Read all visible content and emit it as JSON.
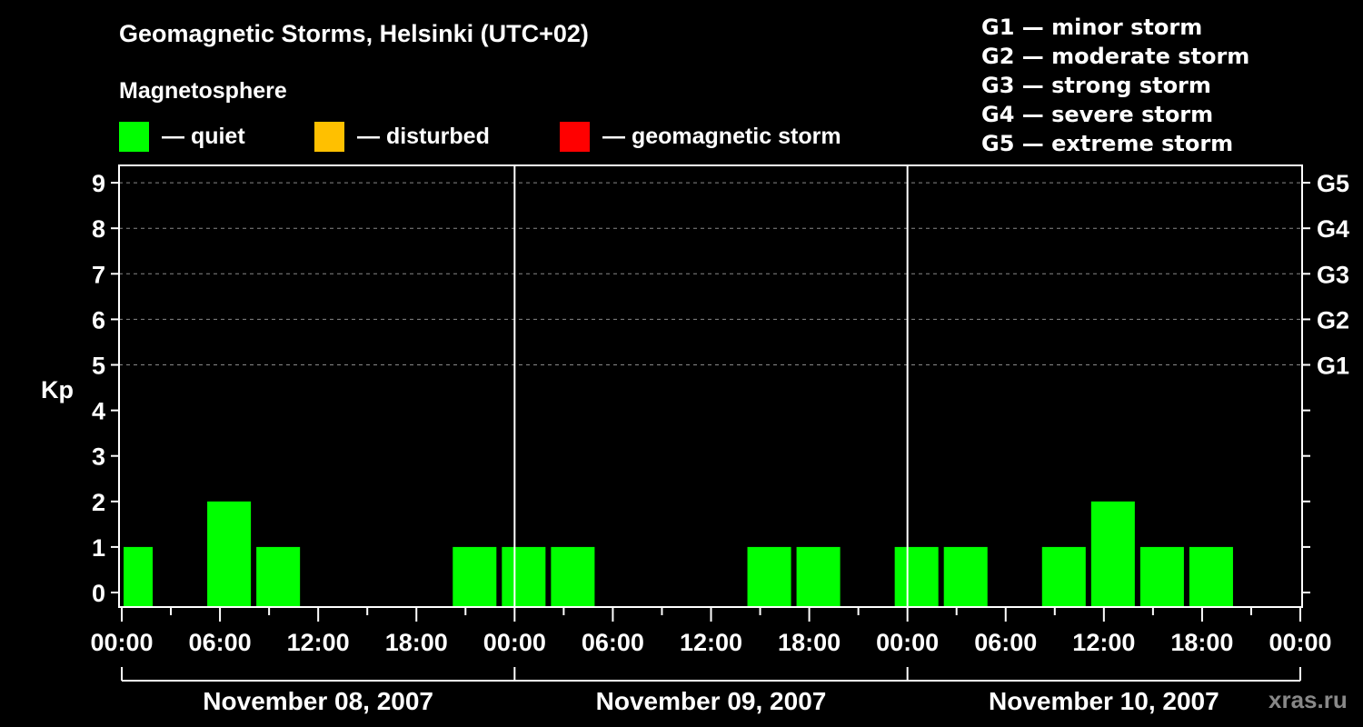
{
  "title": "Geomagnetic Storms, Helsinki (UTC+02)",
  "subtitle": "Magnetosphere",
  "legend": [
    {
      "label": "— quiet",
      "color": "#00ff00"
    },
    {
      "label": "— disturbed",
      "color": "#ffc000"
    },
    {
      "label": "— geomagnetic storm",
      "color": "#ff0000"
    }
  ],
  "g_scale_legend": [
    "G1 — minor storm",
    "G2 — moderate storm",
    "G3 — strong storm",
    "G4 — severe storm",
    "G5 — extreme storm"
  ],
  "watermark": "xras.ru",
  "chart_data": {
    "type": "bar",
    "title": "Geomagnetic Storms, Helsinki (UTC+02)",
    "ylabel": "Kp",
    "xlabel": "",
    "ylim": [
      0,
      9
    ],
    "yticks": [
      0,
      1,
      2,
      3,
      4,
      5,
      6,
      7,
      8,
      9
    ],
    "right_axis_labels": {
      "5": "G1",
      "6": "G2",
      "7": "G3",
      "8": "G4",
      "9": "G5"
    },
    "grid": "dashed horizontal at Kp 5-9",
    "xtick_labels": [
      "00:00",
      "06:00",
      "12:00",
      "18:00",
      "00:00",
      "06:00",
      "12:00",
      "18:00",
      "00:00",
      "06:00",
      "12:00",
      "18:00",
      "00:00"
    ],
    "day_labels": [
      "November 08, 2007",
      "November 09, 2007",
      "November 10, 2007"
    ],
    "bar_interval_hours": 3,
    "bars": [
      {
        "start": "2007-11-07 23:00",
        "end": "2007-11-08 02:00",
        "kp": 1,
        "status": "quiet"
      },
      {
        "start": "2007-11-08 02:00",
        "end": "2007-11-08 05:00",
        "kp": 0,
        "status": "quiet"
      },
      {
        "start": "2007-11-08 05:00",
        "end": "2007-11-08 08:00",
        "kp": 2,
        "status": "quiet"
      },
      {
        "start": "2007-11-08 08:00",
        "end": "2007-11-08 11:00",
        "kp": 1,
        "status": "quiet"
      },
      {
        "start": "2007-11-08 11:00",
        "end": "2007-11-08 14:00",
        "kp": 0,
        "status": "quiet"
      },
      {
        "start": "2007-11-08 14:00",
        "end": "2007-11-08 17:00",
        "kp": 0,
        "status": "quiet"
      },
      {
        "start": "2007-11-08 17:00",
        "end": "2007-11-08 20:00",
        "kp": 0,
        "status": "quiet"
      },
      {
        "start": "2007-11-08 20:00",
        "end": "2007-11-08 23:00",
        "kp": 1,
        "status": "quiet"
      },
      {
        "start": "2007-11-08 23:00",
        "end": "2007-11-09 02:00",
        "kp": 1,
        "status": "quiet"
      },
      {
        "start": "2007-11-09 02:00",
        "end": "2007-11-09 05:00",
        "kp": 1,
        "status": "quiet"
      },
      {
        "start": "2007-11-09 05:00",
        "end": "2007-11-09 08:00",
        "kp": 0,
        "status": "quiet"
      },
      {
        "start": "2007-11-09 08:00",
        "end": "2007-11-09 11:00",
        "kp": 0,
        "status": "quiet"
      },
      {
        "start": "2007-11-09 11:00",
        "end": "2007-11-09 14:00",
        "kp": 0,
        "status": "quiet"
      },
      {
        "start": "2007-11-09 14:00",
        "end": "2007-11-09 17:00",
        "kp": 1,
        "status": "quiet"
      },
      {
        "start": "2007-11-09 17:00",
        "end": "2007-11-09 20:00",
        "kp": 1,
        "status": "quiet"
      },
      {
        "start": "2007-11-09 20:00",
        "end": "2007-11-09 23:00",
        "kp": 0,
        "status": "quiet"
      },
      {
        "start": "2007-11-09 23:00",
        "end": "2007-11-10 02:00",
        "kp": 1,
        "status": "quiet"
      },
      {
        "start": "2007-11-10 02:00",
        "end": "2007-11-10 05:00",
        "kp": 1,
        "status": "quiet"
      },
      {
        "start": "2007-11-10 05:00",
        "end": "2007-11-10 08:00",
        "kp": 0,
        "status": "quiet"
      },
      {
        "start": "2007-11-10 08:00",
        "end": "2007-11-10 11:00",
        "kp": 1,
        "status": "quiet"
      },
      {
        "start": "2007-11-10 11:00",
        "end": "2007-11-10 14:00",
        "kp": 2,
        "status": "quiet"
      },
      {
        "start": "2007-11-10 14:00",
        "end": "2007-11-10 17:00",
        "kp": 1,
        "status": "quiet"
      },
      {
        "start": "2007-11-10 17:00",
        "end": "2007-11-10 20:00",
        "kp": 1,
        "status": "quiet"
      }
    ],
    "legend": [
      "quiet",
      "disturbed",
      "geomagnetic storm"
    ]
  }
}
